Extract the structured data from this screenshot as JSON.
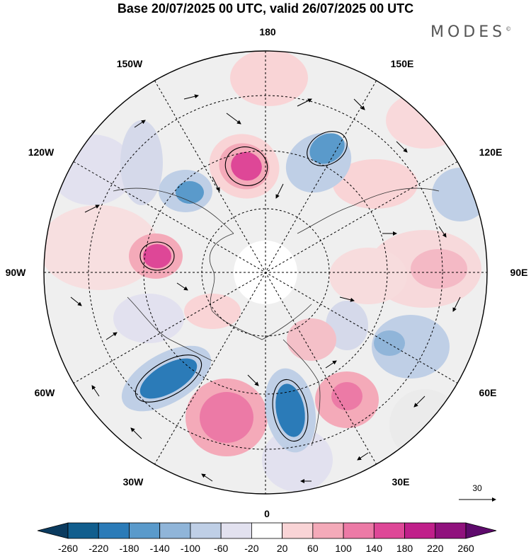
{
  "title": "Base 20/07/2025 00 UTC, valid 26/07/2025 00 UTC",
  "logo": "MODES",
  "logo_mark": "©",
  "longitude_labels": {
    "lon_180": "180",
    "lon_150w": "150W",
    "lon_150e": "150E",
    "lon_120w": "120W",
    "lon_120e": "120E",
    "lon_90w": "90W",
    "lon_90e": "90E",
    "lon_60w": "60W",
    "lon_60e": "60E",
    "lon_30w": "30W",
    "lon_30e": "30E",
    "lon_0": "0"
  },
  "reference_vector": {
    "label": "30"
  },
  "colorbar": {
    "labels": [
      "-260",
      "-220",
      "-180",
      "-140",
      "-100",
      "-60",
      "-20",
      "20",
      "60",
      "100",
      "140",
      "180",
      "220",
      "260"
    ],
    "colors": [
      "#0b3b5f",
      "#115e8e",
      "#2b7bb8",
      "#5a9acb",
      "#90b5d9",
      "#bfcfe6",
      "#e2e1ef",
      "#ffffff",
      "#f9d4d6",
      "#f4aab9",
      "#ec7aa6",
      "#de4797",
      "#c01f8a",
      "#90117d",
      "#5e0a6c"
    ]
  }
}
